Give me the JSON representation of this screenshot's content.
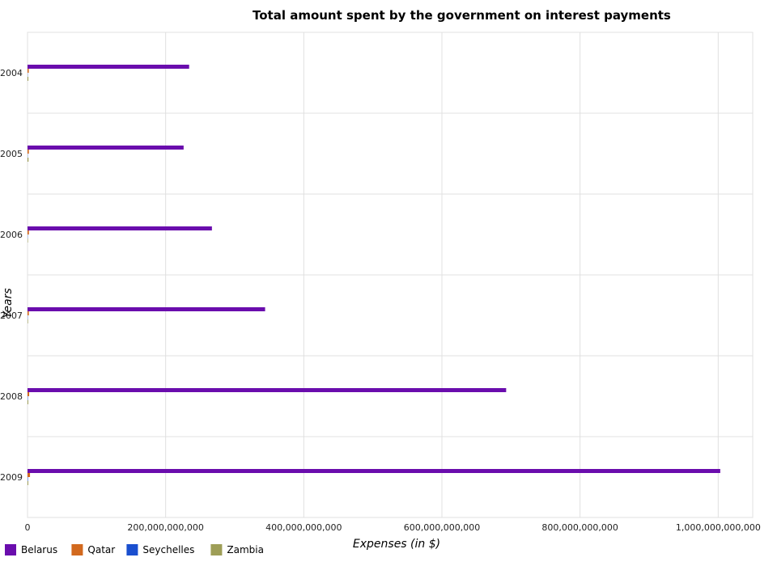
{
  "chart_data": {
    "type": "bar",
    "orientation": "horizontal",
    "title": "Total amount spent by the government on interest payments",
    "xlabel": "Expenses (in $)",
    "ylabel": "Years",
    "categories": [
      "2004",
      "2005",
      "2006",
      "2007",
      "2008",
      "2009"
    ],
    "series": [
      {
        "name": "Belarus",
        "color": "#6a0dad",
        "values": [
          234000000000,
          226000000000,
          267000000000,
          344000000000,
          693000000000,
          1003000000000
        ]
      },
      {
        "name": "Qatar",
        "color": "#d2691e",
        "values": [
          1800000000,
          1900000000,
          2000000000,
          1900000000,
          2400000000,
          3600000000
        ]
      },
      {
        "name": "Seychelles",
        "color": "#1a4fcf",
        "values": [
          250000000,
          260000000,
          300000000,
          310000000,
          500000000,
          600000000
        ]
      },
      {
        "name": "Zambia",
        "color": "#9e9e57",
        "values": [
          1200000000,
          1400000000,
          600000000,
          700000000,
          1100000000,
          1100000000
        ]
      }
    ],
    "xlim": [
      0,
      1050000000000
    ],
    "xticks": [
      0,
      200000000000,
      400000000000,
      600000000000,
      800000000000,
      1000000000000
    ],
    "xtick_labels": [
      "0",
      "200,000,000,000",
      "400,000,000,000",
      "600,000,000,000",
      "800,000,000,000",
      "1,000,000,000,000"
    ],
    "grid": true,
    "legend": "bottom-left"
  }
}
